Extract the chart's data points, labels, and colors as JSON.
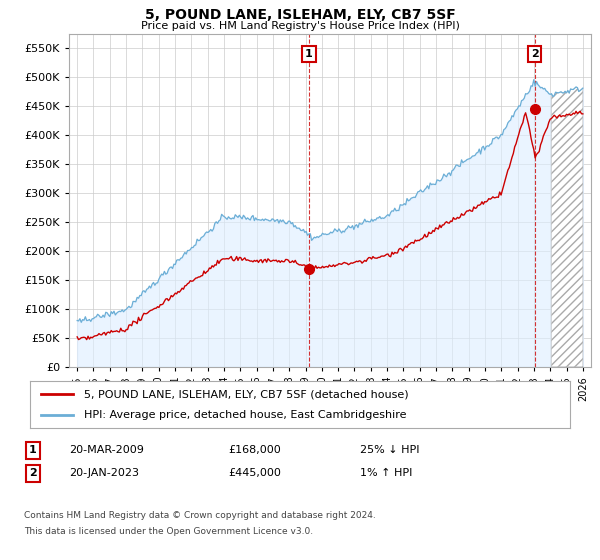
{
  "title": "5, POUND LANE, ISLEHAM, ELY, CB7 5SF",
  "subtitle": "Price paid vs. HM Land Registry's House Price Index (HPI)",
  "legend_line1": "5, POUND LANE, ISLEHAM, ELY, CB7 5SF (detached house)",
  "legend_line2": "HPI: Average price, detached house, East Cambridgeshire",
  "annotation1_date": "20-MAR-2009",
  "annotation1_price": "£168,000",
  "annotation1_hpi": "25% ↓ HPI",
  "annotation2_date": "20-JAN-2023",
  "annotation2_price": "£445,000",
  "annotation2_hpi": "1% ↑ HPI",
  "hpi_line_color": "#6baed6",
  "hpi_fill_color": "#ddeeff",
  "price_line_color": "#cc0000",
  "annotation_dot_color": "#cc0000",
  "vline_color": "#cc0000",
  "background_color": "#ffffff",
  "grid_color": "#cccccc",
  "ylim": [
    0,
    575000
  ],
  "yticks": [
    0,
    50000,
    100000,
    150000,
    200000,
    250000,
    300000,
    350000,
    400000,
    450000,
    500000,
    550000
  ],
  "footer_line1": "Contains HM Land Registry data © Crown copyright and database right 2024.",
  "footer_line2": "This data is licensed under the Open Government Licence v3.0.",
  "sale1_x": 2009.21,
  "sale1_y": 168000,
  "sale2_x": 2023.05,
  "sale2_y": 445000,
  "hatch_start": 2024.0,
  "xlim_left": 1994.5,
  "xlim_right": 2026.5
}
